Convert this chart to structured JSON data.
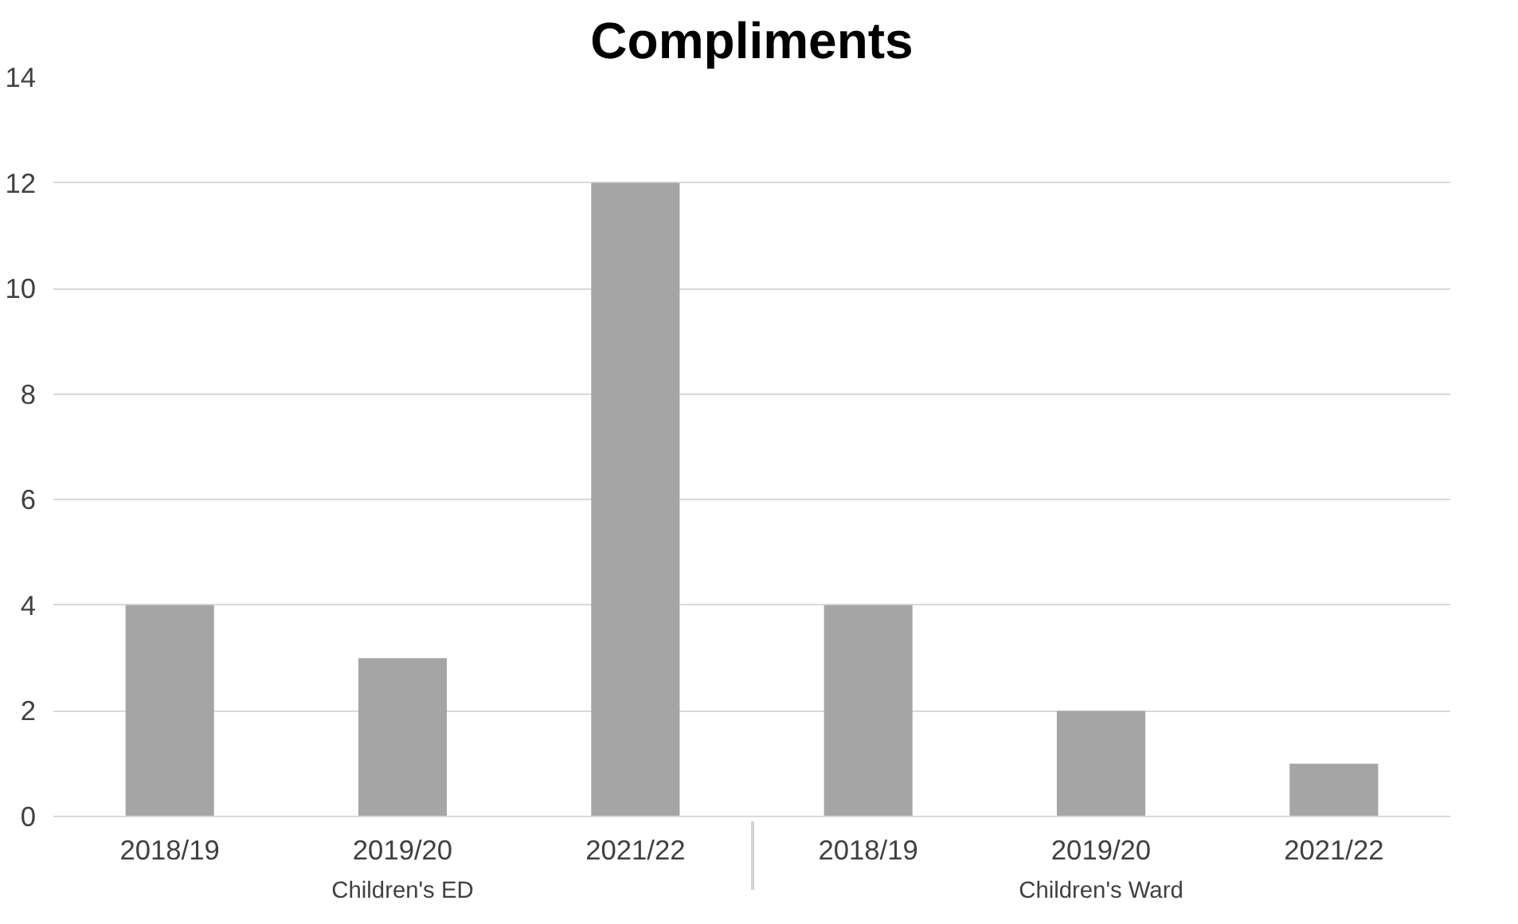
{
  "chart_data": {
    "type": "bar",
    "title": "Compliments",
    "categories": [
      "2018/19",
      "2019/20",
      "2021/22",
      "2018/19",
      "2019/20",
      "2021/22"
    ],
    "values": [
      4,
      3,
      12,
      4,
      2,
      1
    ],
    "color": "#a5a5a5",
    "annotations": [
      "Children's ED",
      "Children's Ward"
    ],
    "ylim": [
      0,
      14
    ],
    "yticks": [
      0,
      2,
      4,
      6,
      8,
      10,
      12,
      14
    ],
    "grid": "y"
  }
}
